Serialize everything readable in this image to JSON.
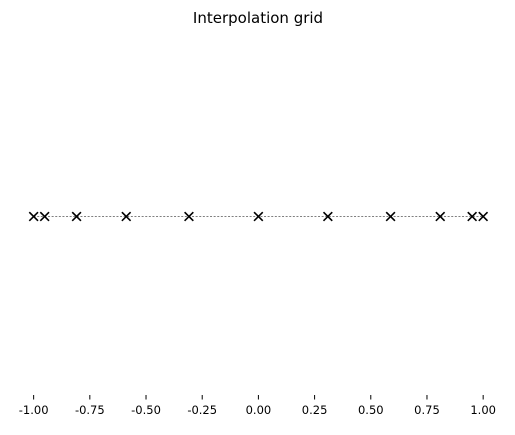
{
  "chart_data": {
    "type": "scatter",
    "title": "Interpolation grid",
    "xlabel": "",
    "ylabel": "",
    "xlim": [
      -1.05,
      1.05
    ],
    "ylim": [
      -1,
      1
    ],
    "grid": false,
    "x_ticks": [
      "-1.00",
      "-0.75",
      "-0.50",
      "-0.25",
      "0.00",
      "0.25",
      "0.50",
      "0.75",
      "1.00"
    ],
    "x_tick_values": [
      -1.0,
      -0.75,
      -0.5,
      -0.25,
      0.0,
      0.25,
      0.5,
      0.75,
      1.0
    ],
    "marker": "x",
    "line_style": "dashed",
    "color": "#000000",
    "series": [
      {
        "x": [
          -1.0,
          -0.951,
          -0.809,
          -0.588,
          -0.309,
          0.0,
          0.309,
          0.588,
          0.809,
          0.951,
          1.0
        ],
        "y": [
          0,
          0,
          0,
          0,
          0,
          0,
          0,
          0,
          0,
          0,
          0
        ]
      }
    ]
  }
}
